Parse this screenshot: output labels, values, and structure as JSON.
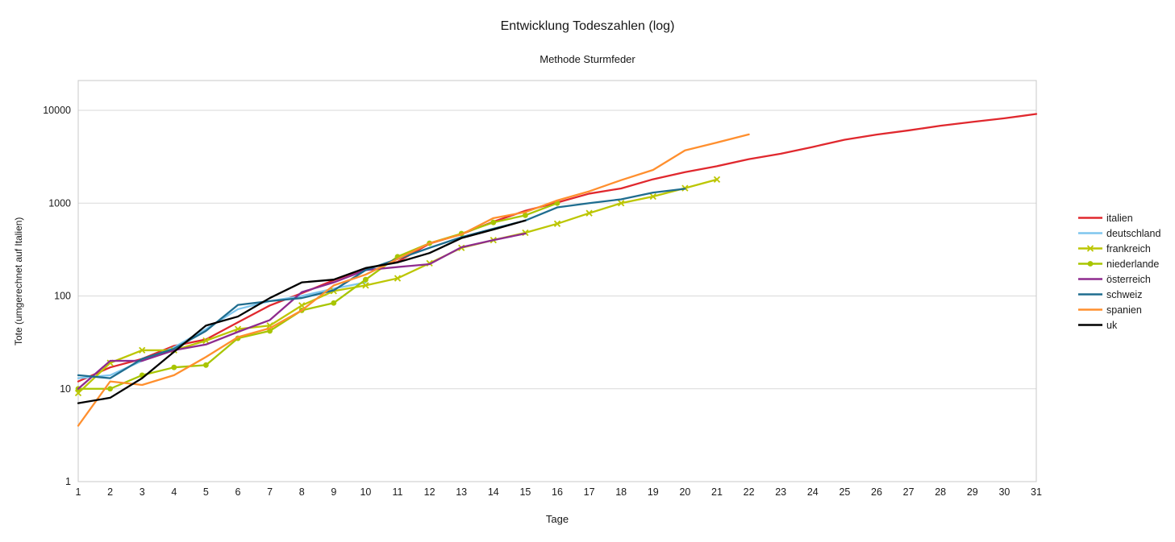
{
  "chart_data": {
    "type": "line",
    "title": "Entwicklung Todeszahlen (log)",
    "subtitle": "Methode Sturmfeder",
    "xlabel": "Tage",
    "ylabel": "Tote (umgerechnet auf Italien)",
    "y_scale": "log",
    "ylim": [
      1,
      20000
    ],
    "y_ticks": [
      1,
      10,
      100,
      1000,
      10000
    ],
    "x_ticks": [
      1,
      2,
      3,
      4,
      5,
      6,
      7,
      8,
      9,
      10,
      11,
      12,
      13,
      14,
      15,
      16,
      17,
      18,
      19,
      20,
      21,
      22,
      23,
      24,
      25,
      26,
      27,
      28,
      29,
      30,
      31
    ],
    "grid": "horizontal",
    "legend_position": "right",
    "x_start": 1,
    "series": [
      {
        "name": "italien",
        "color": "#e0282e",
        "marker": "none",
        "values": [
          12,
          17,
          21,
          29,
          34,
          52,
          79,
          107,
          148,
          197,
          233,
          366,
          463,
          631,
          827,
          1016,
          1266,
          1441,
          1809,
          2158,
          2503,
          2978,
          3405,
          4032,
          4825,
          5476,
          6077,
          6820,
          7503,
          8215,
          9134
        ]
      },
      {
        "name": "deutschland",
        "color": "#7fc6ee",
        "marker": "none",
        "values": [
          13,
          14,
          20,
          28,
          44,
          72,
          88,
          100,
          120,
          140
        ]
      },
      {
        "name": "frankreich",
        "color": "#bcc602",
        "marker": "x",
        "values": [
          9,
          19,
          26,
          26,
          33,
          44,
          48,
          79,
          113,
          130,
          155,
          225,
          330,
          400,
          480,
          600,
          780,
          1000,
          1180,
          1450,
          1800
        ]
      },
      {
        "name": "niederlande",
        "color": "#a8c501",
        "marker": "circle",
        "values": [
          10,
          10,
          14,
          17,
          18,
          35,
          42,
          70,
          84,
          150,
          265,
          370,
          470,
          620,
          740,
          1000
        ]
      },
      {
        "name": "österreich",
        "color": "#8e2b8e",
        "marker": "none",
        "values": [
          10,
          20,
          20,
          26,
          30,
          41,
          55,
          110,
          140,
          190,
          205,
          220,
          335,
          400,
          470
        ]
      },
      {
        "name": "schweiz",
        "color": "#1f6d8f",
        "marker": "none",
        "values": [
          14,
          13,
          21,
          27,
          42,
          80,
          88,
          95,
          115,
          190,
          250,
          330,
          430,
          530,
          650,
          900,
          1000,
          1100,
          1300,
          1430
        ]
      },
      {
        "name": "spanien",
        "color": "#ff8f2e",
        "marker": "none",
        "values": [
          4,
          12,
          11,
          14,
          22,
          36,
          45,
          70,
          130,
          170,
          250,
          370,
          460,
          690,
          800,
          1070,
          1340,
          1770,
          2280,
          3700,
          4500,
          5500
        ]
      },
      {
        "name": "uk",
        "color": "#000000",
        "marker": "none",
        "values": [
          7,
          8,
          13,
          25,
          48,
          60,
          95,
          140,
          150,
          200,
          230,
          290,
          420,
          520,
          650
        ]
      }
    ]
  }
}
